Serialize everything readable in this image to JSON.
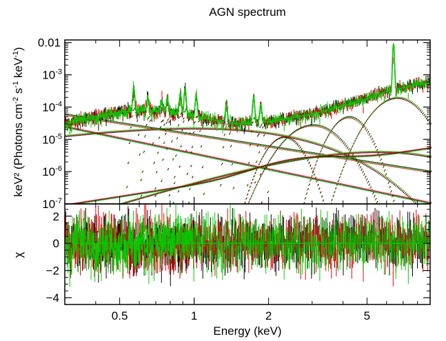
{
  "chart_data": [
    {
      "type": "scatter",
      "title": "AGN spectrum",
      "x_scale": "log",
      "y_scale": "log",
      "xlim": [
        0.3,
        9.0
      ],
      "ylim": [
        1e-07,
        0.012
      ],
      "ylabel_main": "keV² (Photons cm",
      "ylabel_sup1": "-2",
      "ylabel_mid": " s",
      "ylabel_sup2": "-1",
      "ylabel_mid2": " keV",
      "ylabel_sup3": "-1",
      "ylabel_end": ")",
      "y_ticks": [
        {
          "value": 1e-07,
          "base": "10",
          "exp": "-7"
        },
        {
          "value": 1e-06,
          "base": "10",
          "exp": "-6"
        },
        {
          "value": 1e-05,
          "base": "10",
          "exp": "-5"
        },
        {
          "value": 0.0001,
          "base": "10",
          "exp": "-4"
        },
        {
          "value": 0.001,
          "base": "10",
          "exp": "-3"
        },
        {
          "value": 0.01,
          "label": "0.01"
        }
      ],
      "series": [
        {
          "color": "#000000",
          "style": "data+model"
        },
        {
          "color": "#e8000b",
          "style": "data+model"
        },
        {
          "color": "#00cc00",
          "style": "data+model"
        }
      ],
      "continuum": {
        "points_keV": [
          0.3,
          0.4,
          0.5,
          0.6,
          0.8,
          1.0,
          1.5,
          2.0,
          3.0,
          4.0,
          5.0,
          6.0,
          7.0,
          8.0,
          9.0
        ],
        "values": [
          3e-05,
          5e-05,
          7e-05,
          8e-05,
          7e-05,
          5e-05,
          3e-05,
          3.5e-05,
          6e-05,
          0.00011,
          0.00018,
          0.0003,
          0.0004,
          0.0005,
          0.00055
        ]
      },
      "emission_lines_keV": [
        0.57,
        0.65,
        0.74,
        0.78,
        0.88,
        0.92,
        1.02,
        1.35,
        1.74,
        1.86,
        6.4
      ],
      "line_peaks": [
        0.00038,
        0.0002,
        0.00016,
        0.00017,
        0.00026,
        0.00035,
        0.00022,
        0.00012,
        0.00019,
        0.00012,
        0.009
      ]
    },
    {
      "type": "scatter",
      "x_scale": "log",
      "xlim": [
        0.3,
        9.0
      ],
      "ylim": [
        -4.5,
        2.9
      ],
      "ylabel": "χ",
      "xlabel": "Energy (keV)",
      "y_ticks": [
        -4,
        -2,
        0,
        2
      ],
      "y_tick_labels": [
        "−4",
        "−2",
        "0",
        "2"
      ],
      "x_ticks": [
        0.5,
        1,
        2,
        5
      ],
      "x_tick_labels": [
        "0.5",
        "1",
        "2",
        "5"
      ],
      "zero_line": 0
    }
  ]
}
